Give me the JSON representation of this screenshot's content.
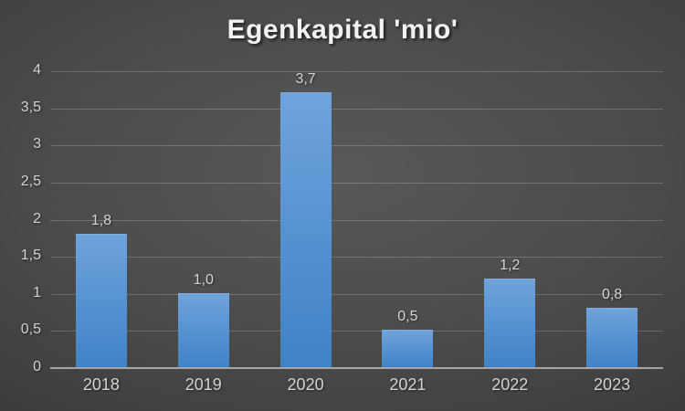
{
  "title": "Egenkapital 'mio'",
  "colors": {
    "background_center": "#585858",
    "background_edge": "#242424",
    "bar_gradient_top": "#6fa3dd",
    "bar_gradient_bottom": "#3f82c5",
    "bar_top_highlight": "rgba(255,255,255,0.35)",
    "gridline": "rgba(255,255,255,0.20)",
    "axis_line": "#a6a6a6",
    "tick_label_text": "#d2d2d2",
    "value_label_text": "#d4d4d4",
    "title_text": "#f2f2f2"
  },
  "chart_data": {
    "type": "bar",
    "title": "Egenkapital 'mio'",
    "categories": [
      "2018",
      "2019",
      "2020",
      "2021",
      "2022",
      "2023"
    ],
    "values": [
      1.8,
      1.0,
      3.7,
      0.5,
      1.2,
      0.8
    ],
    "value_labels": [
      "1,8",
      "1,0",
      "3,7",
      "0,5",
      "1,2",
      "0,8"
    ],
    "xlabel": "",
    "ylabel": "",
    "ylim": [
      0,
      4
    ],
    "ytick_step": 0.5,
    "yticks": [
      0,
      0.5,
      1,
      1.5,
      2,
      2.5,
      3,
      3.5,
      4
    ],
    "ytick_labels": [
      "0",
      "0,5",
      "1",
      "1,5",
      "2",
      "2,5",
      "3",
      "3,5",
      "4"
    ],
    "decimal_separator": ",",
    "grid": true,
    "legend": false,
    "legend_position": "none",
    "bar_color": "blue-gradient",
    "background": "dark-gray-radial"
  }
}
